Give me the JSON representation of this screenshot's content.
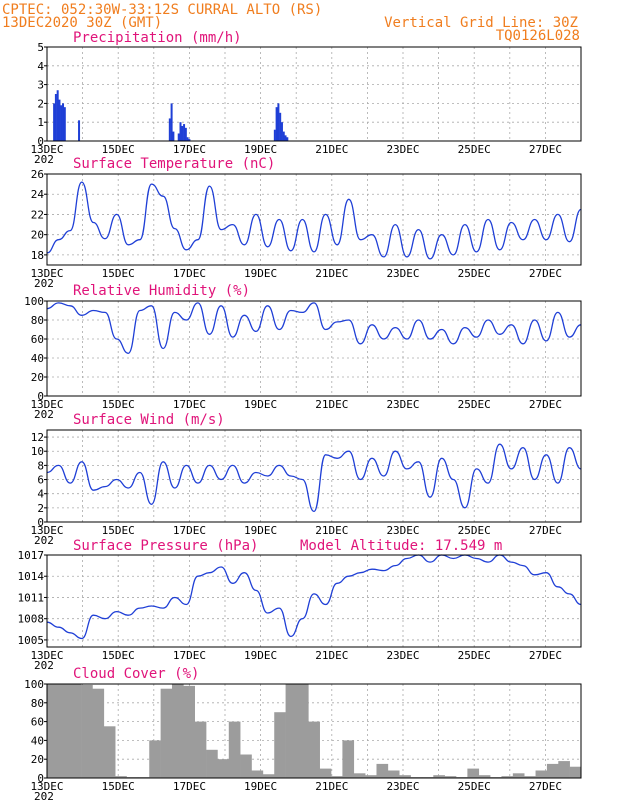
{
  "header": {
    "line1_left": "CPTEC:   052:30W-33:12S   CURRAL ALTO (RS)",
    "line2_left": "13DEC2020 30Z (GMT)",
    "line1_right": "Vertical Grid Line: 30Z",
    "line2_right": "TQ0126L028"
  },
  "colors": {
    "header": "#f07d1e",
    "title": "#e0147a",
    "series": "#1f3fd6",
    "cloud": "#9c9c9c"
  },
  "x_ticks": [
    "13DEC",
    "15DEC",
    "17DEC",
    "19DEC",
    "21DEC",
    "23DEC",
    "25DEC",
    "27DEC"
  ],
  "x_tick_stub": "202",
  "chart_data": [
    {
      "type": "bar",
      "title": "Precipitation (mm/h)",
      "ylim": [
        0,
        5
      ],
      "yticks": [
        0,
        1,
        2,
        3,
        4,
        5
      ],
      "x": [
        0.2,
        0.25,
        0.3,
        0.35,
        0.4,
        0.45,
        0.5,
        0.9,
        3.45,
        3.5,
        3.55,
        3.7,
        3.75,
        3.8,
        3.85,
        3.9,
        3.95,
        4.0,
        6.4,
        6.45,
        6.5,
        6.55,
        6.6,
        6.65,
        6.7,
        6.75
      ],
      "values": [
        2.0,
        2.5,
        2.7,
        2.2,
        1.9,
        2.0,
        1.8,
        1.1,
        1.2,
        2.0,
        0.5,
        0.4,
        1.0,
        0.8,
        0.9,
        0.7,
        0.2,
        0.1,
        0.6,
        1.8,
        2.0,
        1.5,
        1.0,
        0.5,
        0.3,
        0.2
      ],
      "xlabel": "",
      "ylabel": ""
    },
    {
      "type": "line",
      "title": "Surface Temperature (nC)",
      "ylim": [
        17,
        26
      ],
      "yticks": [
        18,
        20,
        22,
        24,
        26
      ],
      "series": [
        {
          "values": [
            18.2,
            19.5,
            20.4,
            25.2,
            21.2,
            19.6,
            22.0,
            19.0,
            19.5,
            25.0,
            23.8,
            20.6,
            18.5,
            19.5,
            24.8,
            20.5,
            21.0,
            19.0,
            22.0,
            18.8,
            21.5,
            18.4,
            21.5,
            18.3,
            22.0,
            19.0,
            23.5,
            19.5,
            20.0,
            17.8,
            21.0,
            17.8,
            20.5,
            17.6,
            20.0,
            18.0,
            21.0,
            18.3,
            21.5,
            18.5,
            21.2,
            19.5,
            21.5,
            19.5,
            22.0,
            19.3,
            22.5
          ]
        }
      ],
      "xlabel": "",
      "ylabel": ""
    },
    {
      "type": "line",
      "title": "Relative Humidity (%)",
      "ylim": [
        0,
        100
      ],
      "yticks": [
        0,
        20,
        40,
        60,
        80,
        100
      ],
      "series": [
        {
          "values": [
            92,
            98,
            95,
            85,
            90,
            88,
            60,
            45,
            90,
            95,
            50,
            88,
            80,
            98,
            65,
            95,
            62,
            85,
            68,
            95,
            70,
            90,
            88,
            98,
            70,
            78,
            80,
            55,
            75,
            60,
            72,
            60,
            80,
            60,
            70,
            55,
            72,
            62,
            80,
            65,
            75,
            55,
            80,
            58,
            88,
            62,
            75
          ]
        }
      ],
      "xlabel": "",
      "ylabel": ""
    },
    {
      "type": "line",
      "title": "Surface Wind (m/s)",
      "ylim": [
        0,
        13
      ],
      "yticks": [
        0,
        2,
        4,
        6,
        8,
        10,
        12
      ],
      "series": [
        {
          "values": [
            7.0,
            8.0,
            5.5,
            8.5,
            4.5,
            5.0,
            6.0,
            4.8,
            7.0,
            2.5,
            8.5,
            4.8,
            8.0,
            5.5,
            8.0,
            6.0,
            8.0,
            5.5,
            7.0,
            6.5,
            8.0,
            6.5,
            6.0,
            1.5,
            9.5,
            9.0,
            10.0,
            6.0,
            9.0,
            6.5,
            10.0,
            7.5,
            8.5,
            3.5,
            9.0,
            6.0,
            2.0,
            7.5,
            5.5,
            11.0,
            7.5,
            10.5,
            6.0,
            9.5,
            5.5,
            10.5,
            7.5
          ]
        }
      ],
      "xlabel": "",
      "ylabel": ""
    },
    {
      "type": "line",
      "title": "Surface Pressure (hPa)",
      "annotation": "Model Altitude: 17.549  m",
      "ylim": [
        1004,
        1017
      ],
      "yticks": [
        1005,
        1008,
        1011,
        1014,
        1017
      ],
      "series": [
        {
          "values": [
            1007.5,
            1006.8,
            1006.0,
            1005.2,
            1008.5,
            1008.0,
            1009.0,
            1008.5,
            1009.5,
            1009.8,
            1009.5,
            1011.0,
            1010.0,
            1014.0,
            1014.5,
            1015.3,
            1013.0,
            1014.5,
            1012.0,
            1008.8,
            1009.5,
            1005.5,
            1008.0,
            1011.5,
            1010.0,
            1013.0,
            1014.0,
            1014.5,
            1015.0,
            1014.8,
            1015.5,
            1016.5,
            1017.0,
            1016.0,
            1017.0,
            1016.5,
            1017.0,
            1016.5,
            1016.0,
            1017.0,
            1016.0,
            1015.5,
            1014.2,
            1014.5,
            1012.5,
            1011.5,
            1010.0
          ]
        }
      ],
      "xlabel": "",
      "ylabel": ""
    },
    {
      "type": "area",
      "title": "Cloud Cover (%)",
      "ylim": [
        0,
        100
      ],
      "yticks": [
        0,
        20,
        40,
        60,
        80,
        100
      ],
      "series": [
        {
          "values": [
            100,
            100,
            100,
            99,
            95,
            55,
            2,
            1,
            1,
            40,
            95,
            100,
            98,
            60,
            30,
            20,
            60,
            25,
            8,
            4,
            70,
            100,
            100,
            60,
            10,
            2,
            40,
            5,
            3,
            15,
            8,
            3,
            1,
            1,
            3,
            2,
            1,
            10,
            3,
            1,
            2,
            5,
            2,
            8,
            15,
            18,
            12
          ]
        }
      ],
      "xlabel": "",
      "ylabel": ""
    }
  ]
}
